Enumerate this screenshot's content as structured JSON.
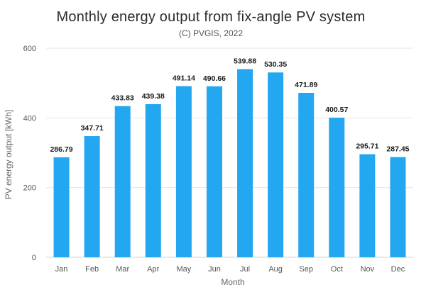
{
  "chart_data": {
    "type": "bar",
    "title": "Monthly energy output from fix-angle PV system",
    "subtitle": "(C) PVGIS, 2022",
    "xlabel": "Month",
    "ylabel": "PV energy output [kWh]",
    "categories": [
      "Jan",
      "Feb",
      "Mar",
      "Apr",
      "May",
      "Jun",
      "Jul",
      "Aug",
      "Sep",
      "Oct",
      "Nov",
      "Dec"
    ],
    "values": [
      286.79,
      347.71,
      433.83,
      439.38,
      491.14,
      490.66,
      539.88,
      530.35,
      471.89,
      400.57,
      295.71,
      287.45
    ],
    "data_labels": [
      "286.79",
      "347.71",
      "433.83",
      "439.38",
      "491.14",
      "490.66",
      "539.88",
      "530.35",
      "471.89",
      "400.57",
      "295.71",
      "287.45"
    ],
    "yticks": [
      "0",
      "200",
      "400",
      "600"
    ],
    "ytick_values": [
      0,
      200,
      400,
      600
    ],
    "ylim": [
      0,
      600
    ],
    "grid": true,
    "legend": "none",
    "bar_color": "#22a7f0"
  }
}
